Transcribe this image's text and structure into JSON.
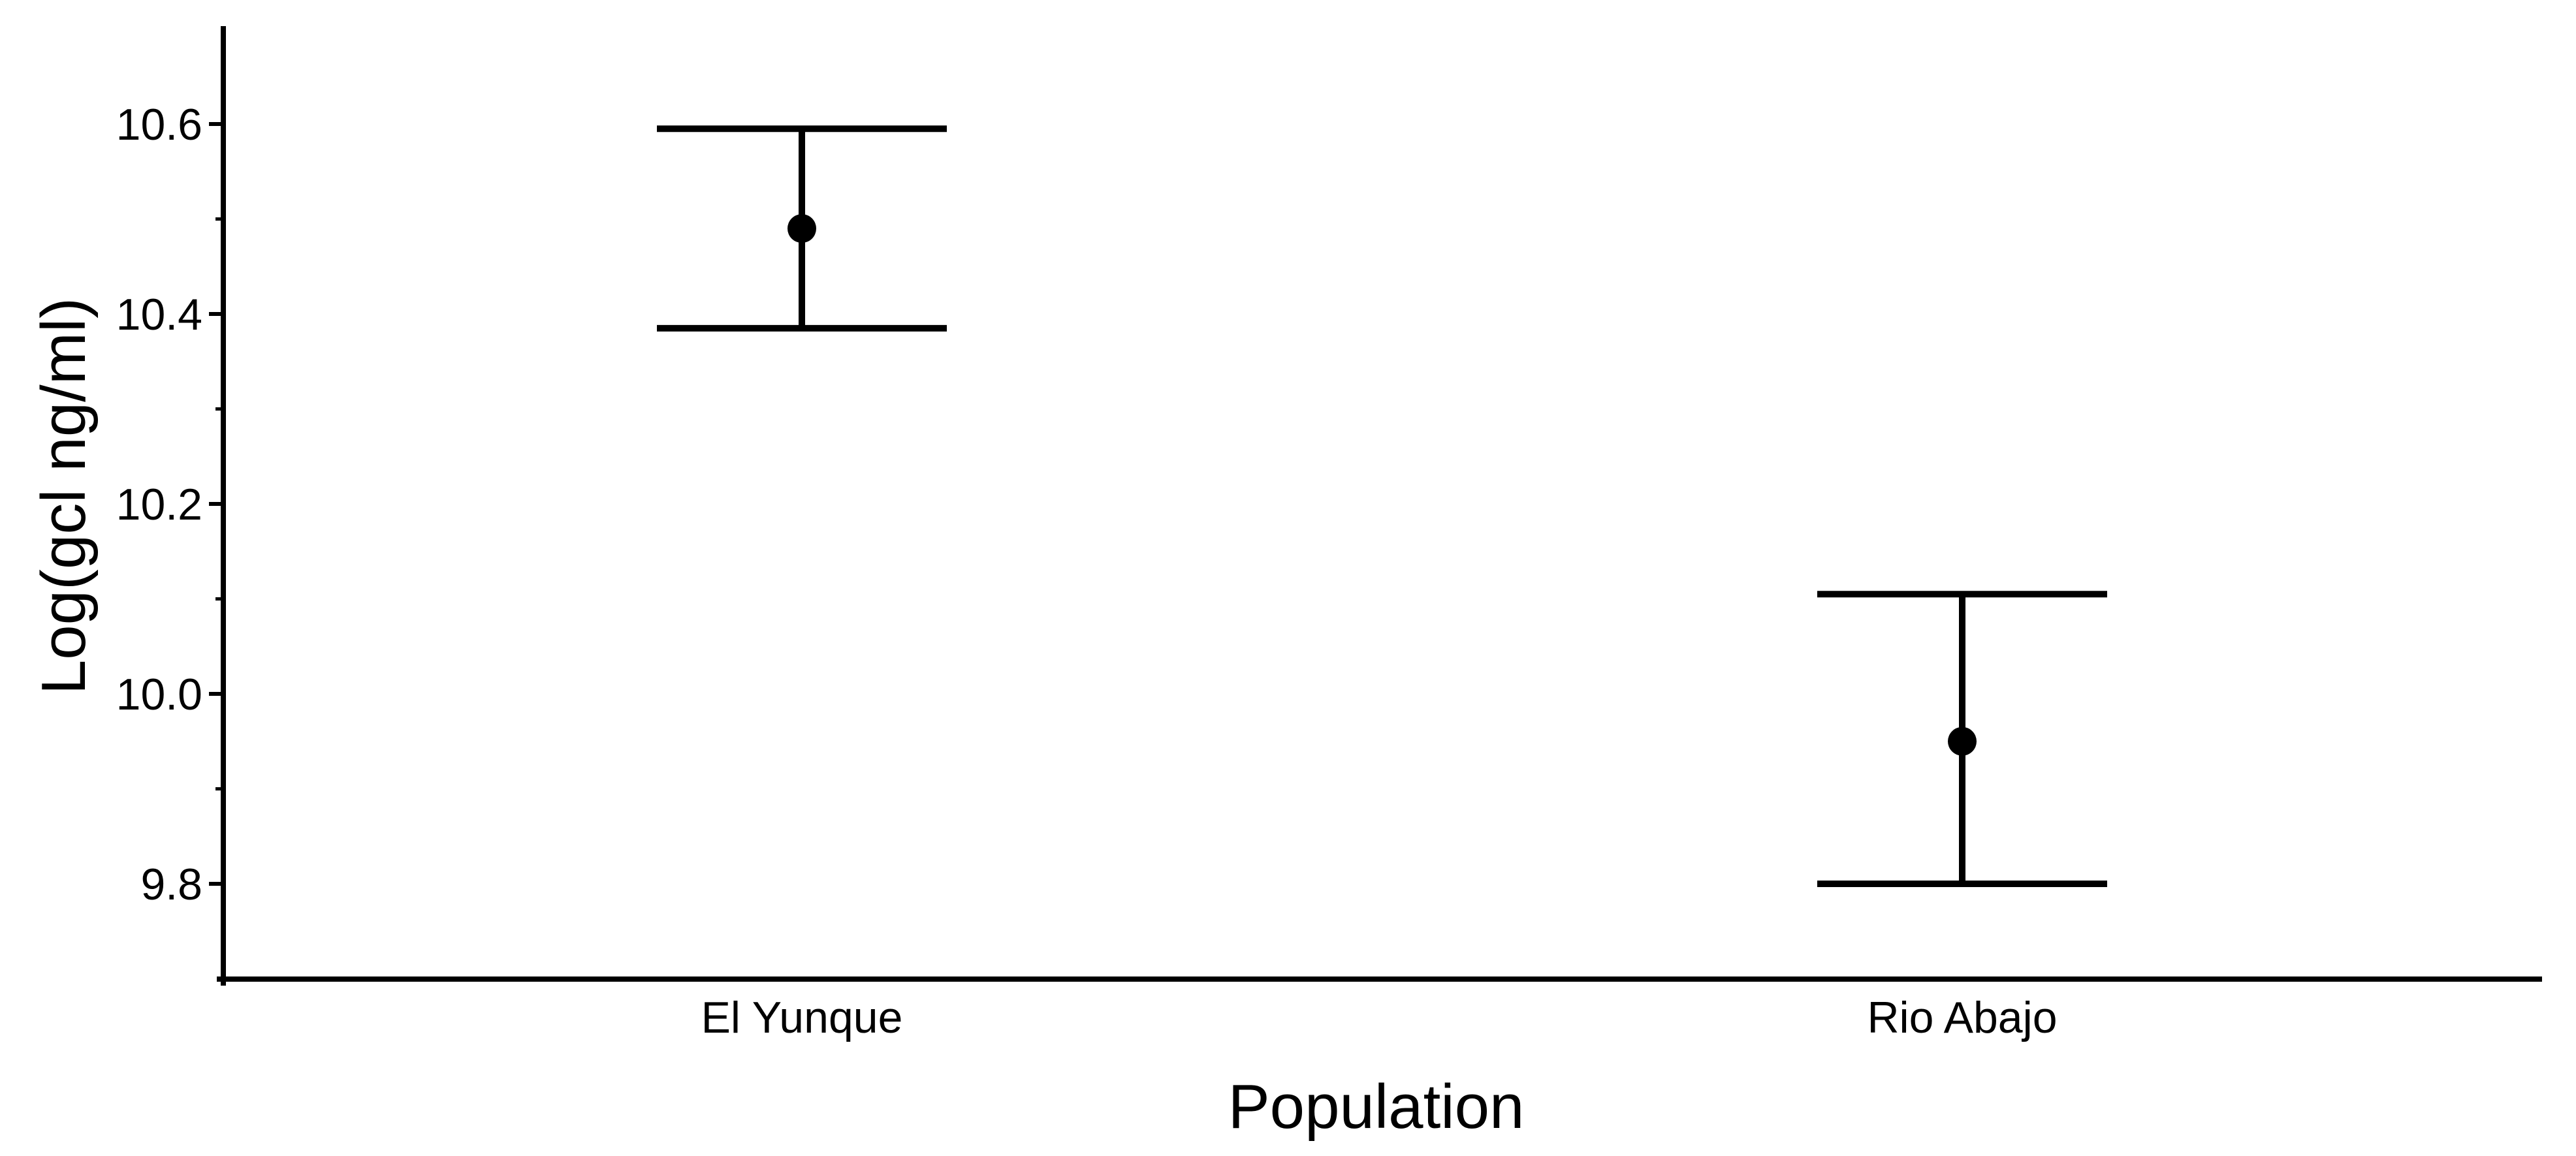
{
  "chart_data": {
    "type": "scatter",
    "title": "",
    "xlabel": "Population",
    "ylabel": "Log(gcl ng/ml)",
    "categories": [
      "El Yunque",
      "Rio Abajo"
    ],
    "series": [
      {
        "points": [
          {
            "category": "El Yunque",
            "mean": 10.49,
            "lower": 10.385,
            "upper": 10.595
          },
          {
            "category": "Rio Abajo",
            "mean": 9.95,
            "lower": 9.8,
            "upper": 10.105
          }
        ]
      }
    ],
    "y_ticks": [
      "9.8",
      "10.0",
      "10.2",
      "10.4",
      "10.6"
    ],
    "ylim": [
      9.7,
      10.7
    ],
    "grid": false,
    "legend": "none",
    "colors": {
      "axis": "#000000",
      "marks": "#000000"
    }
  }
}
